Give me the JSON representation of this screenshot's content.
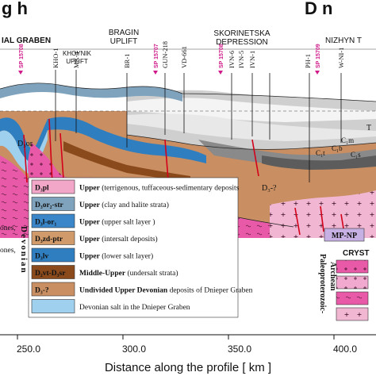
{
  "header": {
    "title_left": "g h",
    "title_right": "D n"
  },
  "regions": {
    "graben": "IAL GRABEN",
    "bragin_line1": "BRAGIN",
    "bragin_line2": "UPLIFT",
    "khoynik_line1": "KHOYNIK",
    "khoynik_line2": "UPLIFT",
    "skorinetska_line1": "SKORINETSKA",
    "skorinetska_line2": "DEPRESSION",
    "nizhyn": "NIZHYN T"
  },
  "wells": [
    {
      "label": "SP 15708"
    },
    {
      "label": "KHO-1"
    },
    {
      "label": "MK-4"
    },
    {
      "label": "BR-1"
    },
    {
      "label": "SP 15707"
    },
    {
      "label": "GUN-218"
    },
    {
      "label": "VD-661"
    },
    {
      "label": "SP 15708"
    },
    {
      "label": "IVN-6"
    },
    {
      "label": "IVN-5"
    },
    {
      "label": "IVN-1"
    },
    {
      "label": "PH-1"
    },
    {
      "label": "SP 15709"
    },
    {
      "label": "W-NI-1"
    }
  ],
  "section_labels": {
    "or": "D₃or",
    "dv": "D₃-?",
    "t": "T",
    "cm": "C₁m",
    "cb": "C₁b",
    "cs": "C₁s",
    "ct": "C₁t"
  },
  "left_fragments": [
    "ones,",
    "ones,"
  ],
  "legend": {
    "group_title": "Devonian",
    "items": [
      {
        "code": "D₃pl",
        "bold": "Upper",
        "desc": " (terrigenous, tuffaceous-sedimentary deposits",
        "fill": "#f2a6c8"
      },
      {
        "code": "D₃or₂-str",
        "bold": "Upper",
        "desc": " (clay and halite strata)",
        "fill": "#7fa3bd"
      },
      {
        "code": "D₃l-or₁",
        "bold": "Upper",
        "desc": " (upper salt layer )",
        "fill": "#3a86c8"
      },
      {
        "code": "D₃zd-ptr",
        "bold": "Upper",
        "desc": " (intersalt deposits)",
        "fill": "#d09a6a"
      },
      {
        "code": "D₃lv",
        "bold": "Upper",
        "desc": " (lower salt layer)",
        "fill": "#2f7ec0"
      },
      {
        "code": "D₂vt-D₃sr",
        "bold": "Middle-Upper",
        "desc": " (undersalt strata)",
        "fill": "#8a4a1c"
      },
      {
        "code": "D₃-?",
        "bold": "Undivided Upper Devonian",
        "desc": " deposits of Dnieper Graben",
        "fill": "#c98f62"
      },
      {
        "code": "",
        "bold": "",
        "desc": "Devonian salt in the Dnieper Graben",
        "fill": "#9fd0ee"
      }
    ]
  },
  "right_legend": {
    "mp_np": "MP-NP",
    "cryst": "CRYST",
    "eon_line1": "Paleoproterozoic-",
    "eon_line2": "Archean"
  },
  "axis": {
    "label": "Distance along the profile  [ km ]",
    "ticks": [
      "250.0",
      "300.0",
      "350.0",
      "400.0"
    ]
  },
  "colors": {
    "archean_pink": "#e85aa8",
    "undivided_brown": "#c98f62",
    "salt_blue": "#2f7ec0",
    "sp_magenta": "#d01a8a",
    "fault_red": "#d4001a"
  }
}
